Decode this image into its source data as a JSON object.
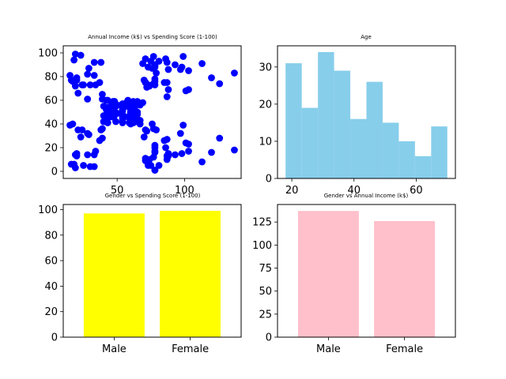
{
  "colors": {
    "scatter": "#0000ff",
    "age_hist": "#87ceeb",
    "gender_spending": "#ffff00",
    "gender_income": "#ffc0cb"
  },
  "chart_data": [
    {
      "type": "scatter",
      "title": "Annual Income (k$) vs Spending Score (1-100)",
      "xlim": [
        10,
        142
      ],
      "ylim": [
        -6,
        106
      ],
      "xticks": [
        50,
        100
      ],
      "yticks": [
        0,
        20,
        40,
        60,
        80,
        100
      ],
      "grid": false,
      "points": [
        [
          15,
          39
        ],
        [
          15,
          81
        ],
        [
          16,
          6
        ],
        [
          16,
          77
        ],
        [
          17,
          40
        ],
        [
          17,
          76
        ],
        [
          18,
          6
        ],
        [
          18,
          94
        ],
        [
          19,
          3
        ],
        [
          19,
          72
        ],
        [
          19,
          14
        ],
        [
          19,
          99
        ],
        [
          20,
          15
        ],
        [
          20,
          77
        ],
        [
          20,
          13
        ],
        [
          20,
          79
        ],
        [
          21,
          35
        ],
        [
          21,
          66
        ],
        [
          23,
          29
        ],
        [
          23,
          98
        ],
        [
          24,
          35
        ],
        [
          24,
          73
        ],
        [
          25,
          5
        ],
        [
          25,
          73
        ],
        [
          28,
          14
        ],
        [
          28,
          82
        ],
        [
          28,
          32
        ],
        [
          28,
          61
        ],
        [
          29,
          31
        ],
        [
          29,
          87
        ],
        [
          30,
          4
        ],
        [
          30,
          73
        ],
        [
          33,
          4
        ],
        [
          33,
          92
        ],
        [
          33,
          14
        ],
        [
          33,
          81
        ],
        [
          34,
          17
        ],
        [
          34,
          73
        ],
        [
          37,
          26
        ],
        [
          37,
          75
        ],
        [
          38,
          35
        ],
        [
          38,
          92
        ],
        [
          39,
          36
        ],
        [
          39,
          61
        ],
        [
          39,
          28
        ],
        [
          39,
          65
        ],
        [
          40,
          55
        ],
        [
          40,
          47
        ],
        [
          40,
          42
        ],
        [
          40,
          42
        ],
        [
          42,
          52
        ],
        [
          42,
          60
        ],
        [
          43,
          54
        ],
        [
          43,
          60
        ],
        [
          43,
          45
        ],
        [
          43,
          41
        ],
        [
          44,
          50
        ],
        [
          44,
          46
        ],
        [
          46,
          51
        ],
        [
          46,
          46
        ],
        [
          46,
          56
        ],
        [
          46,
          55
        ],
        [
          47,
          52
        ],
        [
          47,
          59
        ],
        [
          48,
          51
        ],
        [
          48,
          59
        ],
        [
          48,
          50
        ],
        [
          48,
          48
        ],
        [
          48,
          59
        ],
        [
          48,
          47
        ],
        [
          49,
          55
        ],
        [
          49,
          42
        ],
        [
          50,
          49
        ],
        [
          50,
          56
        ],
        [
          54,
          47
        ],
        [
          54,
          54
        ],
        [
          54,
          53
        ],
        [
          54,
          48
        ],
        [
          54,
          52
        ],
        [
          54,
          42
        ],
        [
          54,
          51
        ],
        [
          54,
          55
        ],
        [
          54,
          41
        ],
        [
          54,
          44
        ],
        [
          54,
          57
        ],
        [
          54,
          46
        ],
        [
          57,
          58
        ],
        [
          57,
          55
        ],
        [
          58,
          60
        ],
        [
          58,
          46
        ],
        [
          59,
          55
        ],
        [
          59,
          41
        ],
        [
          60,
          49
        ],
        [
          60,
          40
        ],
        [
          60,
          42
        ],
        [
          60,
          52
        ],
        [
          60,
          47
        ],
        [
          60,
          50
        ],
        [
          61,
          42
        ],
        [
          61,
          49
        ],
        [
          62,
          41
        ],
        [
          62,
          48
        ],
        [
          62,
          59
        ],
        [
          62,
          55
        ],
        [
          62,
          56
        ],
        [
          62,
          42
        ],
        [
          63,
          50
        ],
        [
          63,
          46
        ],
        [
          63,
          43
        ],
        [
          63,
          48
        ],
        [
          63,
          52
        ],
        [
          63,
          54
        ],
        [
          64,
          42
        ],
        [
          64,
          46
        ],
        [
          65,
          48
        ],
        [
          65,
          50
        ],
        [
          65,
          43
        ],
        [
          65,
          59
        ],
        [
          67,
          43
        ],
        [
          67,
          57
        ],
        [
          67,
          56
        ],
        [
          67,
          40
        ],
        [
          69,
          58
        ],
        [
          69,
          91
        ],
        [
          70,
          29
        ],
        [
          70,
          77
        ],
        [
          71,
          35
        ],
        [
          71,
          95
        ],
        [
          71,
          11
        ],
        [
          71,
          75
        ],
        [
          71,
          9
        ],
        [
          71,
          75
        ],
        [
          72,
          34
        ],
        [
          72,
          71
        ],
        [
          73,
          5
        ],
        [
          73,
          88
        ],
        [
          73,
          7
        ],
        [
          73,
          73
        ],
        [
          74,
          10
        ],
        [
          74,
          72
        ],
        [
          75,
          5
        ],
        [
          75,
          93
        ],
        [
          76,
          40
        ],
        [
          76,
          87
        ],
        [
          77,
          12
        ],
        [
          77,
          97
        ],
        [
          77,
          36
        ],
        [
          77,
          74
        ],
        [
          78,
          22
        ],
        [
          78,
          90
        ],
        [
          78,
          17
        ],
        [
          78,
          88
        ],
        [
          78,
          20
        ],
        [
          78,
          76
        ],
        [
          78,
          16
        ],
        [
          78,
          89
        ],
        [
          78,
          1
        ],
        [
          78,
          78
        ],
        [
          78,
          1
        ],
        [
          78,
          73
        ],
        [
          79,
          35
        ],
        [
          79,
          83
        ],
        [
          81,
          5
        ],
        [
          81,
          93
        ],
        [
          85,
          26
        ],
        [
          85,
          75
        ],
        [
          86,
          20
        ],
        [
          86,
          95
        ],
        [
          87,
          27
        ],
        [
          87,
          63
        ],
        [
          87,
          13
        ],
        [
          87,
          75
        ],
        [
          87,
          10
        ],
        [
          87,
          92
        ],
        [
          88,
          13
        ],
        [
          88,
          86
        ],
        [
          88,
          15
        ],
        [
          88,
          69
        ],
        [
          93,
          14
        ],
        [
          93,
          90
        ],
        [
          97,
          32
        ],
        [
          97,
          86
        ],
        [
          98,
          15
        ],
        [
          98,
          88
        ],
        [
          99,
          39
        ],
        [
          99,
          97
        ],
        [
          101,
          24
        ],
        [
          101,
          68
        ],
        [
          103,
          17
        ],
        [
          103,
          85
        ],
        [
          103,
          23
        ],
        [
          103,
          69
        ],
        [
          113,
          8
        ],
        [
          113,
          91
        ],
        [
          120,
          16
        ],
        [
          120,
          79
        ],
        [
          126,
          28
        ],
        [
          126,
          74
        ],
        [
          137,
          18
        ],
        [
          137,
          83
        ]
      ]
    },
    {
      "type": "histogram",
      "title": "Age",
      "xlim": [
        15.4,
        72.6
      ],
      "ylim": [
        0,
        35.7
      ],
      "xticks": [
        20,
        40,
        60
      ],
      "yticks": [
        0,
        10,
        20,
        30
      ],
      "grid": false,
      "bins": [
        {
          "x0": 18.0,
          "x1": 23.2,
          "count": 31
        },
        {
          "x0": 23.2,
          "x1": 28.4,
          "count": 19
        },
        {
          "x0": 28.4,
          "x1": 33.6,
          "count": 34
        },
        {
          "x0": 33.6,
          "x1": 38.8,
          "count": 29
        },
        {
          "x0": 38.8,
          "x1": 44.0,
          "count": 16
        },
        {
          "x0": 44.0,
          "x1": 49.2,
          "count": 26
        },
        {
          "x0": 49.2,
          "x1": 54.4,
          "count": 15
        },
        {
          "x0": 54.4,
          "x1": 59.6,
          "count": 10
        },
        {
          "x0": 59.6,
          "x1": 64.8,
          "count": 6
        },
        {
          "x0": 64.8,
          "x1": 70.0,
          "count": 14
        }
      ]
    },
    {
      "type": "bar",
      "title": "Gender vs Spending Score (1-100)",
      "categories": [
        "Male",
        "Female"
      ],
      "values": [
        97,
        99
      ],
      "ylim": [
        0,
        104
      ],
      "yticks": [
        0,
        20,
        40,
        60,
        80,
        100
      ],
      "grid": false
    },
    {
      "type": "bar",
      "title": "Gender vs Annual Income (k$)",
      "categories": [
        "Male",
        "Female"
      ],
      "values": [
        137,
        126
      ],
      "ylim": [
        0,
        144
      ],
      "yticks": [
        0,
        25,
        50,
        75,
        100,
        125
      ],
      "grid": false
    }
  ]
}
